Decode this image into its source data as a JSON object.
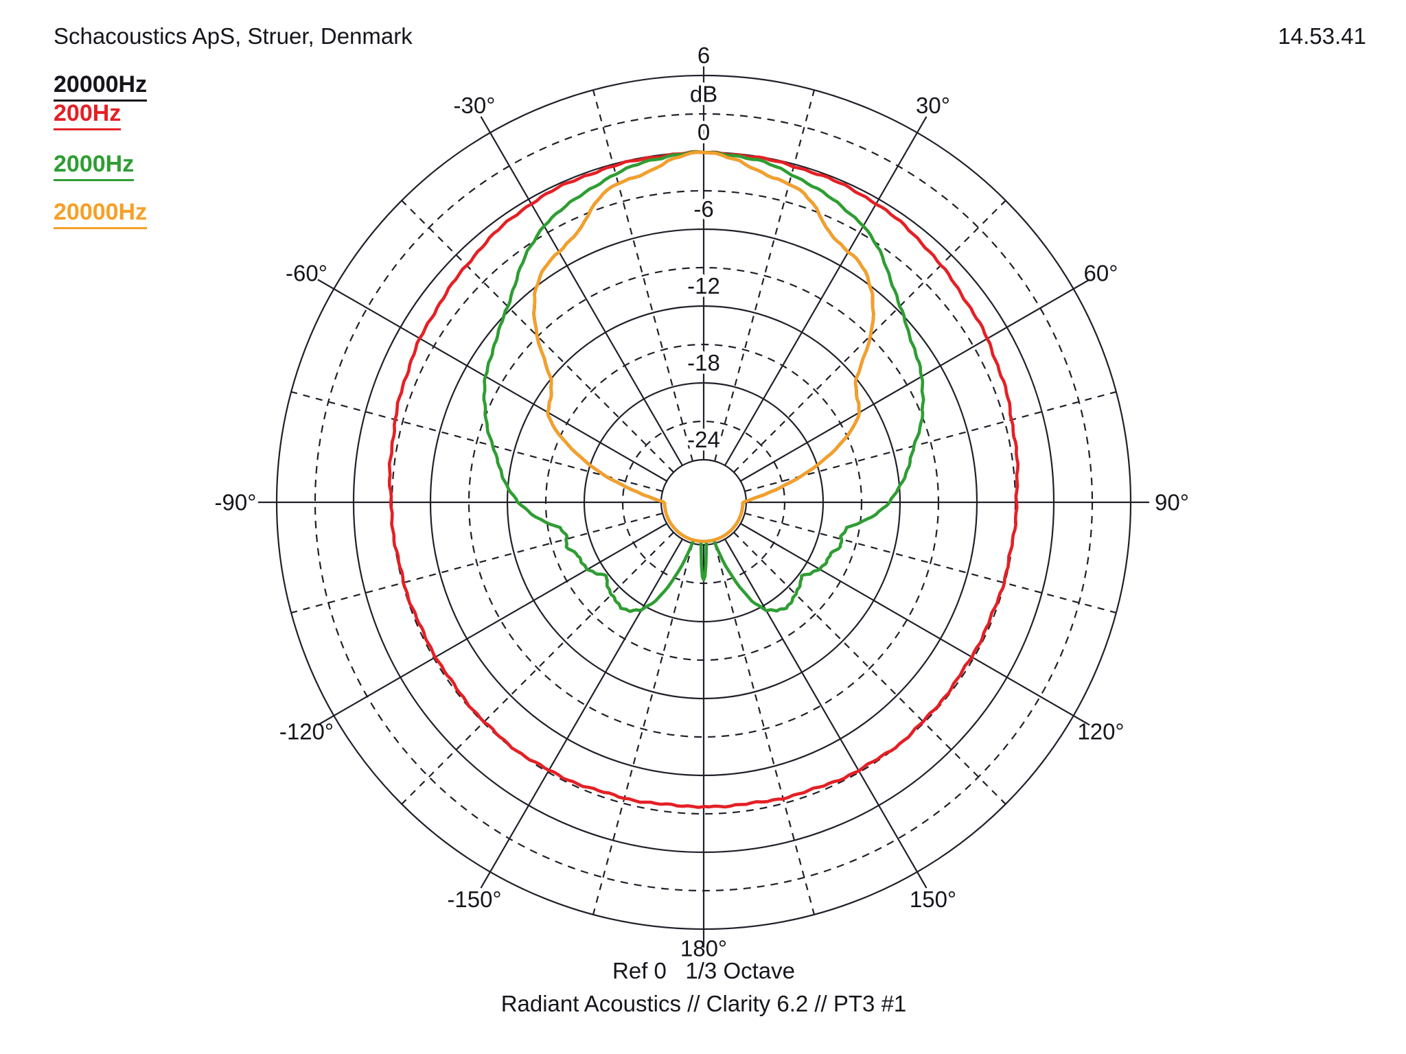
{
  "header": {
    "title": "Schacoustics ApS, Struer, Denmark",
    "time": "14.53.41"
  },
  "legend": {
    "items": [
      {
        "label": "20000Hz",
        "color": "#15151c"
      },
      {
        "label": "200Hz",
        "color": "#e42025"
      },
      {
        "label": "2000Hz",
        "color": "#2f9d33"
      },
      {
        "label": "20000Hz",
        "color": "#f5a028"
      }
    ]
  },
  "footer": {
    "ref_line": "Ref 0   1/3 Octave",
    "source_line": "Radiant Acoustics // Clarity 6.2 // PT3 #1"
  },
  "chart_data": {
    "type": "line",
    "subtype": "polar-directivity",
    "title": "",
    "radial_axis_unit": "dB",
    "radial_ticks": [
      {
        "db": 6,
        "label": "6"
      },
      {
        "db": 0,
        "label": "0"
      },
      {
        "db": -6,
        "label": "-6"
      },
      {
        "db": -12,
        "label": "-12"
      },
      {
        "db": -18,
        "label": "-18"
      },
      {
        "db": -24,
        "label": "-24"
      }
    ],
    "grid": {
      "solid_rings_db": [
        6,
        0,
        -6,
        -12,
        -18,
        -24
      ],
      "dashed_rings_db": [
        3,
        -3,
        -9,
        -15,
        -21
      ],
      "solid_spokes_deg_step": 30,
      "dashed_spokes_deg_step": 15,
      "db_max": 6,
      "db_min_visible": -24.3,
      "grid_color": "#1f2029"
    },
    "angle_labels": [
      {
        "deg": -30,
        "label": "-30°"
      },
      {
        "deg": 30,
        "label": "30°"
      },
      {
        "deg": -60,
        "label": "-60°"
      },
      {
        "deg": 60,
        "label": "60°"
      },
      {
        "deg": -90,
        "label": "-90°"
      },
      {
        "deg": 90,
        "label": "90°"
      },
      {
        "deg": -120,
        "label": "-120°"
      },
      {
        "deg": 120,
        "label": "120°"
      },
      {
        "deg": -150,
        "label": "-150°"
      },
      {
        "deg": 150,
        "label": "150°"
      },
      {
        "deg": 180,
        "label": "180°"
      }
    ],
    "series": [
      {
        "name": "20000Hz",
        "color": "#15151c",
        "mirror": true,
        "note": "black trace coincides with orange 20000Hz trace and is hidden beneath it",
        "points": [
          [
            0,
            0
          ],
          [
            3,
            -0.15
          ],
          [
            6,
            -0.5
          ],
          [
            9,
            -1.1
          ],
          [
            12,
            -1.45
          ],
          [
            15,
            -1.55
          ],
          [
            18,
            -1.9
          ],
          [
            21,
            -2.8
          ],
          [
            24,
            -3.9
          ],
          [
            27,
            -4.4
          ],
          [
            30,
            -4.7
          ],
          [
            33,
            -5.0
          ],
          [
            36,
            -5.6
          ],
          [
            39,
            -6.4
          ],
          [
            42,
            -7.5
          ],
          [
            45,
            -8.9
          ],
          [
            48,
            -10.6
          ],
          [
            51,
            -12.0
          ],
          [
            54,
            -12.6
          ],
          [
            57,
            -13.0
          ],
          [
            60,
            -13.3
          ],
          [
            63,
            -14.1
          ],
          [
            66,
            -15.3
          ],
          [
            69,
            -16.7
          ],
          [
            72,
            -18.1
          ],
          [
            75,
            -19.4
          ],
          [
            78,
            -20.8
          ],
          [
            81,
            -22.0
          ],
          [
            84,
            -23.0
          ],
          [
            87,
            -23.7
          ],
          [
            90,
            -24.2
          ],
          [
            94,
            -24.7
          ],
          [
            100,
            -25.3
          ],
          [
            110,
            -25.5
          ],
          [
            130,
            -25.5
          ],
          [
            150,
            -25.5
          ],
          [
            165,
            -25.5
          ],
          [
            180,
            -25.5
          ]
        ]
      },
      {
        "name": "200Hz",
        "color": "#e42025",
        "mirror": true,
        "points": [
          [
            0,
            0
          ],
          [
            5,
            -0.05
          ],
          [
            10,
            -0.1
          ],
          [
            15,
            -0.15
          ],
          [
            20,
            -0.2
          ],
          [
            25,
            -0.28
          ],
          [
            30,
            -0.38
          ],
          [
            35,
            -0.6
          ],
          [
            40,
            -0.85
          ],
          [
            45,
            -1.15
          ],
          [
            50,
            -1.4
          ],
          [
            55,
            -1.6
          ],
          [
            60,
            -1.78
          ],
          [
            65,
            -2.0
          ],
          [
            70,
            -2.2
          ],
          [
            75,
            -2.42
          ],
          [
            80,
            -2.6
          ],
          [
            85,
            -2.75
          ],
          [
            90,
            -2.9
          ],
          [
            95,
            -3.0
          ],
          [
            100,
            -3.05
          ],
          [
            110,
            -3.15
          ],
          [
            120,
            -3.2
          ],
          [
            130,
            -3.15
          ],
          [
            140,
            -3.05
          ],
          [
            150,
            -3.15
          ],
          [
            160,
            -3.35
          ],
          [
            170,
            -3.5
          ],
          [
            180,
            -3.6
          ]
        ]
      },
      {
        "name": "2000Hz",
        "color": "#2f9d33",
        "mirror": true,
        "points": [
          [
            0,
            0
          ],
          [
            5,
            -0.12
          ],
          [
            10,
            -0.35
          ],
          [
            15,
            -0.8
          ],
          [
            20,
            -1.3
          ],
          [
            25,
            -1.85
          ],
          [
            30,
            -2.35
          ],
          [
            35,
            -3.4
          ],
          [
            40,
            -4.6
          ],
          [
            45,
            -5.7
          ],
          [
            50,
            -6.5
          ],
          [
            55,
            -7.1
          ],
          [
            60,
            -7.7
          ],
          [
            65,
            -8.4
          ],
          [
            70,
            -9.3
          ],
          [
            75,
            -10.3
          ],
          [
            80,
            -11.1
          ],
          [
            85,
            -11.9
          ],
          [
            90,
            -12.8
          ],
          [
            95,
            -14.2
          ],
          [
            100,
            -15.9
          ],
          [
            104,
            -16.3
          ],
          [
            108,
            -16.1
          ],
          [
            112,
            -16.6
          ],
          [
            116,
            -16.7
          ],
          [
            120,
            -16.9
          ],
          [
            124,
            -17.3
          ],
          [
            127,
            -17.8
          ],
          [
            130,
            -17.5
          ],
          [
            134,
            -17.2
          ],
          [
            138,
            -17.0
          ],
          [
            142,
            -16.9
          ],
          [
            146,
            -17.1
          ],
          [
            150,
            -17.6
          ],
          [
            154,
            -18.8
          ],
          [
            158,
            -20.6
          ],
          [
            162,
            -22.6
          ],
          [
            165,
            -24.3
          ],
          [
            168,
            -25.5
          ],
          [
            172,
            -25.5
          ],
          [
            175,
            -25.3
          ],
          [
            176.5,
            -24.0
          ],
          [
            178,
            -22.4
          ],
          [
            179,
            -21.6
          ],
          [
            180,
            -21.3
          ]
        ]
      },
      {
        "name": "20000Hz",
        "color": "#f5a028",
        "mirror": true,
        "points": [
          [
            0,
            0
          ],
          [
            3,
            -0.15
          ],
          [
            6,
            -0.5
          ],
          [
            9,
            -1.1
          ],
          [
            12,
            -1.45
          ],
          [
            15,
            -1.55
          ],
          [
            18,
            -1.9
          ],
          [
            21,
            -2.8
          ],
          [
            24,
            -3.9
          ],
          [
            27,
            -4.4
          ],
          [
            30,
            -4.7
          ],
          [
            33,
            -5.0
          ],
          [
            36,
            -5.6
          ],
          [
            39,
            -6.4
          ],
          [
            42,
            -7.5
          ],
          [
            45,
            -8.9
          ],
          [
            48,
            -10.6
          ],
          [
            51,
            -12.0
          ],
          [
            54,
            -12.6
          ],
          [
            57,
            -13.0
          ],
          [
            60,
            -13.3
          ],
          [
            63,
            -14.1
          ],
          [
            66,
            -15.3
          ],
          [
            69,
            -16.7
          ],
          [
            72,
            -18.1
          ],
          [
            75,
            -19.4
          ],
          [
            78,
            -20.8
          ],
          [
            81,
            -22.0
          ],
          [
            84,
            -23.0
          ],
          [
            87,
            -23.7
          ],
          [
            90,
            -24.2
          ],
          [
            94,
            -24.7
          ],
          [
            100,
            -25.3
          ],
          [
            110,
            -25.5
          ],
          [
            130,
            -25.5
          ],
          [
            150,
            -25.5
          ],
          [
            165,
            -25.5
          ],
          [
            180,
            -25.5
          ]
        ]
      }
    ],
    "draw_order": [
      1,
      2,
      0,
      3
    ]
  }
}
